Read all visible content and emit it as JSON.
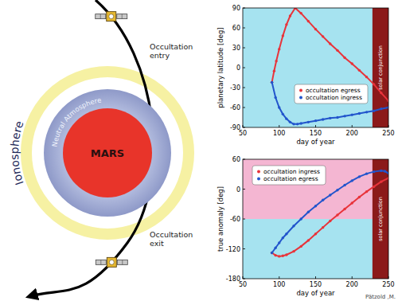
{
  "diagram": {
    "labels": {
      "ionosphere": "Ionosphere",
      "neutral_atmosphere": "Neutral Atmosphere",
      "planet": "MARS",
      "entry": "Occultation entry",
      "exit": "Occultation exit"
    }
  },
  "chart_data": [
    {
      "type": "line",
      "x_label": "day of year",
      "y_label": "planetary latitude [deg]",
      "xlim": [
        50,
        250
      ],
      "ylim": [
        -90,
        90
      ],
      "xticks": [
        50,
        100,
        150,
        200,
        250
      ],
      "yticks": [
        -90,
        -60,
        -30,
        0,
        30,
        60,
        90
      ],
      "legend": "lower right",
      "annotations": [
        {
          "text": "solar conjunction",
          "x": [
            228,
            250
          ],
          "color": "#8b1a1a"
        }
      ],
      "series": [
        {
          "name": "occultation egress",
          "color": "#e8333a",
          "marker": "dot",
          "x": [
            90,
            93,
            96,
            100,
            105,
            110,
            115,
            122,
            130,
            140,
            150,
            160,
            170,
            180,
            190,
            200,
            210,
            220,
            230,
            240,
            250
          ],
          "values": [
            -22,
            -5,
            10,
            28,
            48,
            65,
            78,
            90,
            82,
            70,
            58,
            47,
            36,
            26,
            15,
            6,
            -4,
            -14,
            -25,
            -38,
            -50
          ]
        },
        {
          "name": "occultation ingress",
          "color": "#2255cc",
          "marker": "dot",
          "x": [
            90,
            95,
            100,
            105,
            110,
            115,
            120,
            125,
            130,
            140,
            150,
            160,
            170,
            180,
            190,
            200,
            210,
            220,
            230,
            240,
            250
          ],
          "values": [
            -22,
            -45,
            -60,
            -70,
            -77,
            -82,
            -85,
            -85,
            -84,
            -82,
            -80,
            -78,
            -76,
            -75,
            -73,
            -71,
            -69,
            -67,
            -65,
            -62,
            -60
          ]
        }
      ]
    },
    {
      "type": "line",
      "x_label": "day of year",
      "y_label": "true anomaly [deg]",
      "xlim": [
        50,
        250
      ],
      "ylim": [
        -180,
        60
      ],
      "xticks": [
        50,
        100,
        150,
        200,
        250
      ],
      "yticks": [
        -180,
        -120,
        -60,
        0,
        60
      ],
      "legend": "upper left",
      "bands": [
        {
          "y": [
            -60,
            60
          ],
          "color": "#f4b6d2"
        }
      ],
      "annotations": [
        {
          "text": "solar conjunction",
          "x": [
            228,
            250
          ],
          "color": "#8b1a1a"
        }
      ],
      "series": [
        {
          "name": "occultation ingress",
          "color": "#e8333a",
          "marker": "dot",
          "x": [
            90,
            95,
            100,
            105,
            110,
            120,
            130,
            140,
            150,
            160,
            170,
            180,
            190,
            200,
            210,
            220,
            230,
            240,
            250
          ],
          "values": [
            -128,
            -133,
            -135,
            -134,
            -132,
            -125,
            -115,
            -103,
            -90,
            -77,
            -64,
            -52,
            -40,
            -28,
            -16,
            -5,
            5,
            15,
            22
          ]
        },
        {
          "name": "occultation egress",
          "color": "#2255cc",
          "marker": "dot",
          "x": [
            90,
            95,
            100,
            105,
            110,
            120,
            130,
            140,
            150,
            160,
            170,
            180,
            190,
            200,
            210,
            220,
            230,
            240,
            245,
            250
          ],
          "values": [
            -128,
            -118,
            -108,
            -98,
            -90,
            -74,
            -60,
            -46,
            -34,
            -22,
            -12,
            -2,
            8,
            17,
            25,
            31,
            35,
            37,
            36,
            32
          ]
        }
      ]
    }
  ],
  "credit": "Pätzold ,M."
}
